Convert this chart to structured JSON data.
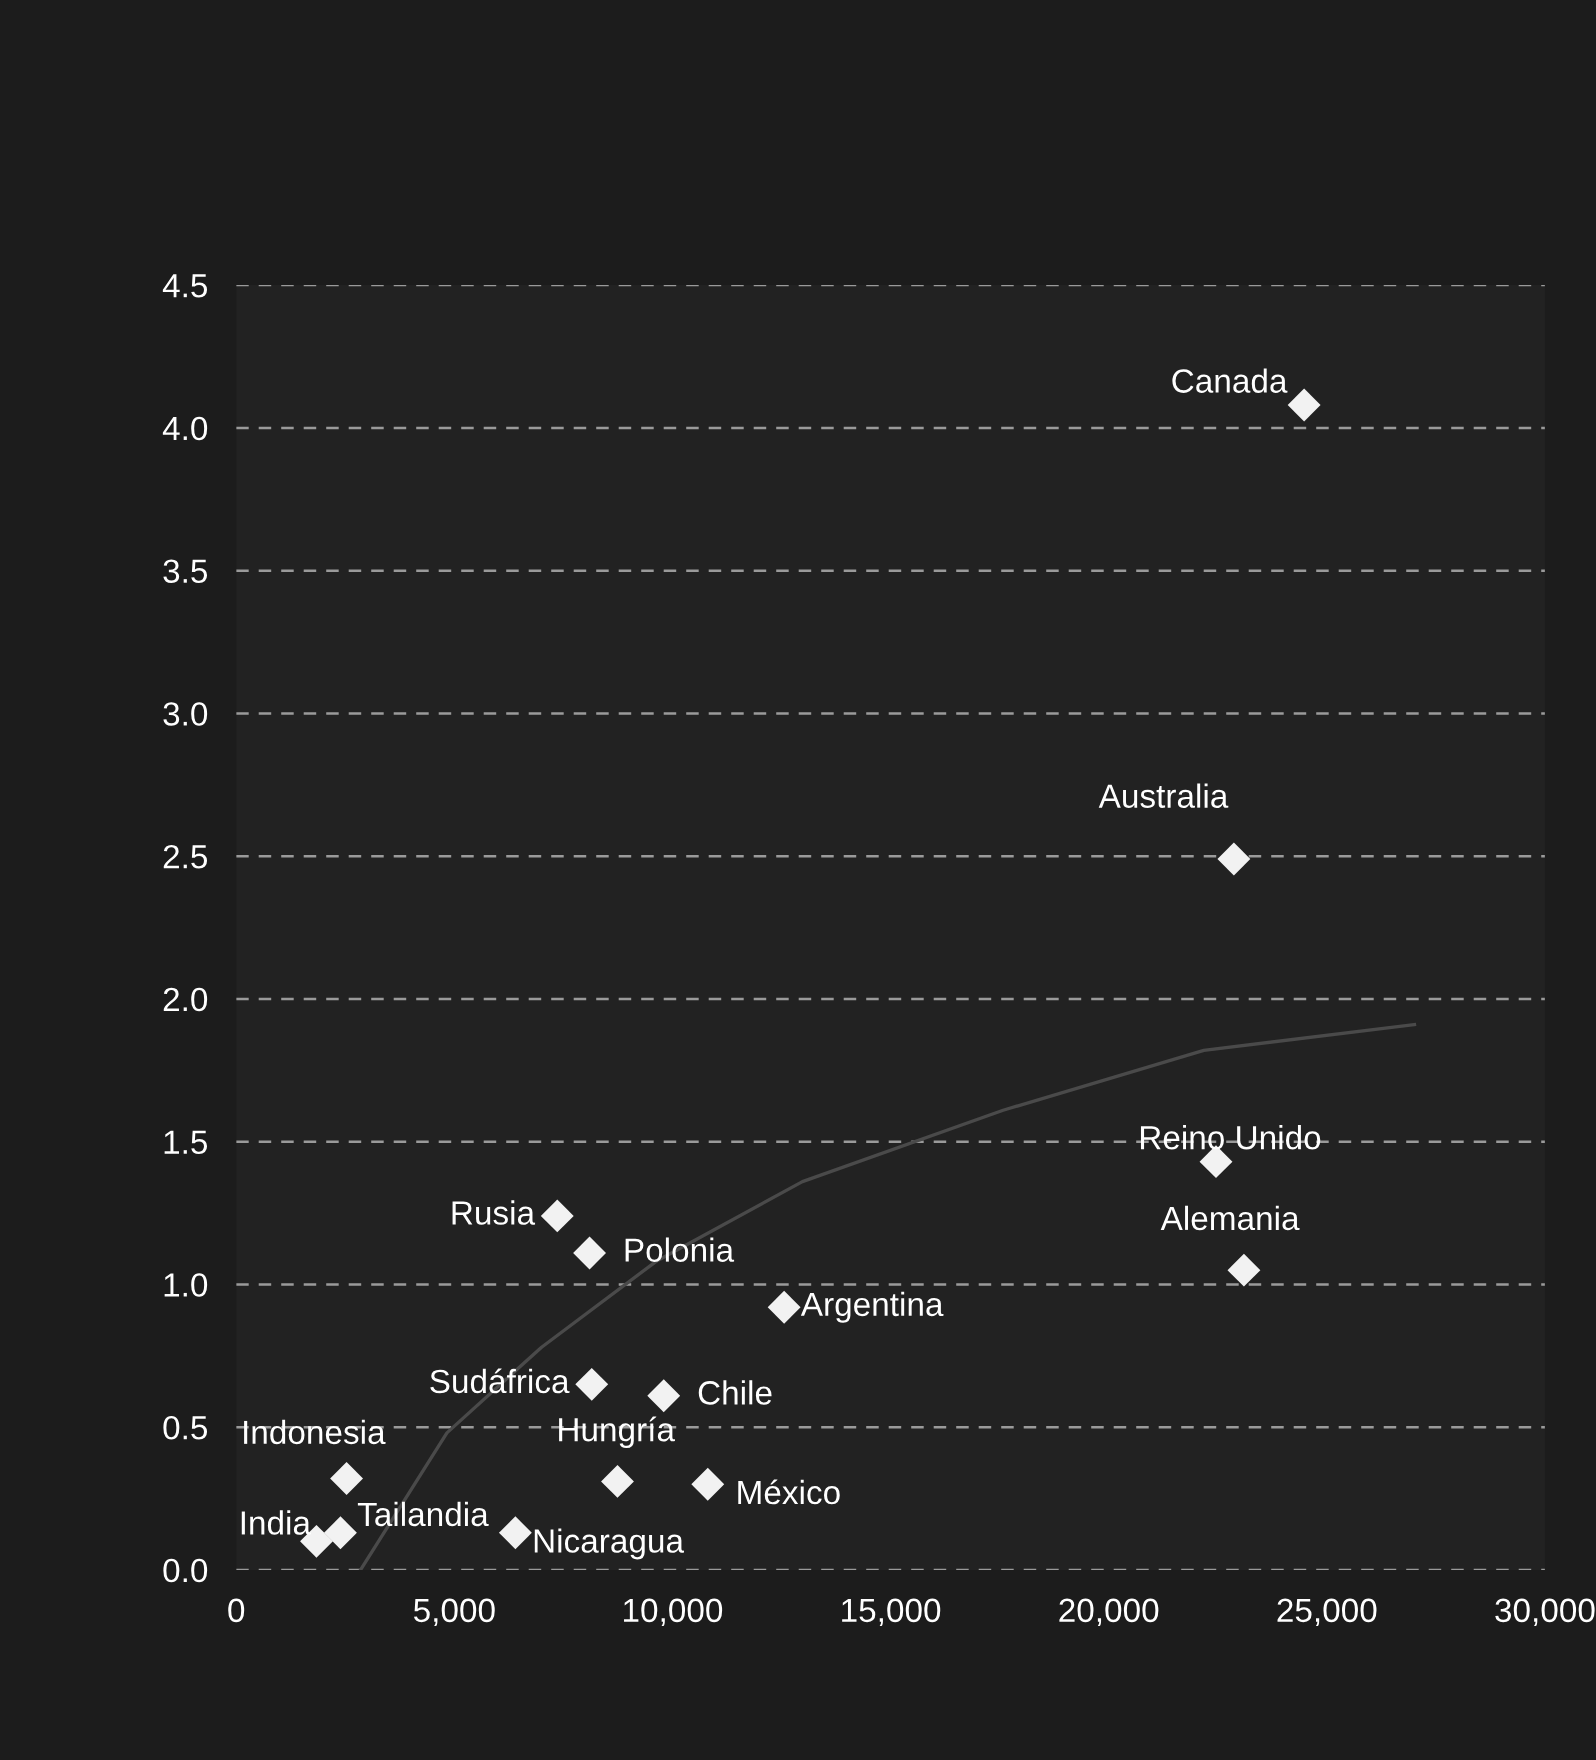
{
  "chart_data": {
    "type": "scatter",
    "series": [
      {
        "color": "#f2f2f2",
        "marker": "diamond",
        "x": [
          24480,
          22870,
          22460,
          23100,
          12560,
          7360,
          8100,
          8150,
          9800,
          8740,
          10810,
          2530,
          1840,
          2390,
          6400
        ],
        "values": [
          4.08,
          2.49,
          1.43,
          1.05,
          0.92,
          1.24,
          1.11,
          0.65,
          0.61,
          0.31,
          0.3,
          0.32,
          0.1,
          0.13,
          0.13
        ]
      },
      {
        "type": "line",
        "color": "#4a4a4a",
        "marker": "none",
        "x": [
          2850,
          4830,
          7000,
          9620,
          12980,
          17580,
          22180,
          27010
        ],
        "values": [
          0.0,
          0.48,
          0.78,
          1.08,
          1.36,
          1.61,
          1.82,
          1.91
        ]
      }
    ],
    "annotations": [
      {
        "text": "Canada",
        "x": 24480,
        "y": 4.08
      },
      {
        "text": "Australia",
        "x": 22870,
        "y": 2.49
      },
      {
        "text": "Reino Unido",
        "x": 22460,
        "y": 1.43
      },
      {
        "text": "Alemania",
        "x": 23100,
        "y": 1.05
      },
      {
        "text": "Argentina",
        "x": 12560,
        "y": 0.92
      },
      {
        "text": "Rusia",
        "x": 7360,
        "y": 1.24
      },
      {
        "text": "Polonia",
        "x": 8100,
        "y": 1.11
      },
      {
        "text": "Sudáfrica",
        "x": 8150,
        "y": 0.65
      },
      {
        "text": "Chile",
        "x": 9800,
        "y": 0.61
      },
      {
        "text": "Hungría",
        "x": 8740,
        "y": 0.31
      },
      {
        "text": "México",
        "x": 10810,
        "y": 0.3
      },
      {
        "text": "Indonesia",
        "x": 2530,
        "y": 0.32
      },
      {
        "text": "India",
        "x": 1840,
        "y": 0.1
      },
      {
        "text": "Tailandia",
        "x": 2390,
        "y": 0.13
      },
      {
        "text": "Nicaragua",
        "x": 6400,
        "y": 0.13
      }
    ],
    "xlim": [
      0,
      30000
    ],
    "xticks": [
      {
        "value": 0,
        "label": "0"
      },
      {
        "value": 5000,
        "label": "5,000"
      },
      {
        "value": 10000,
        "label": "10,000"
      },
      {
        "value": 15000,
        "label": "15,000"
      },
      {
        "value": 20000,
        "label": "20,000"
      },
      {
        "value": 25000,
        "label": "25,000"
      },
      {
        "value": 30000,
        "label": "30,000"
      }
    ],
    "ylim": [
      0,
      4.5
    ],
    "yticks": [
      {
        "value": 0,
        "label": "0.0"
      },
      {
        "value": 0.5,
        "label": "0.5"
      },
      {
        "value": 1,
        "label": "1.0"
      },
      {
        "value": 1.5,
        "label": "1.5"
      },
      {
        "value": 2,
        "label": "2.0"
      },
      {
        "value": 2.5,
        "label": "2.5"
      },
      {
        "value": 3,
        "label": "3.0"
      },
      {
        "value": 3.5,
        "label": "3.5"
      },
      {
        "value": 4,
        "label": "4.0"
      },
      {
        "value": 4.5,
        "label": "4.5"
      }
    ],
    "grid": "y"
  }
}
